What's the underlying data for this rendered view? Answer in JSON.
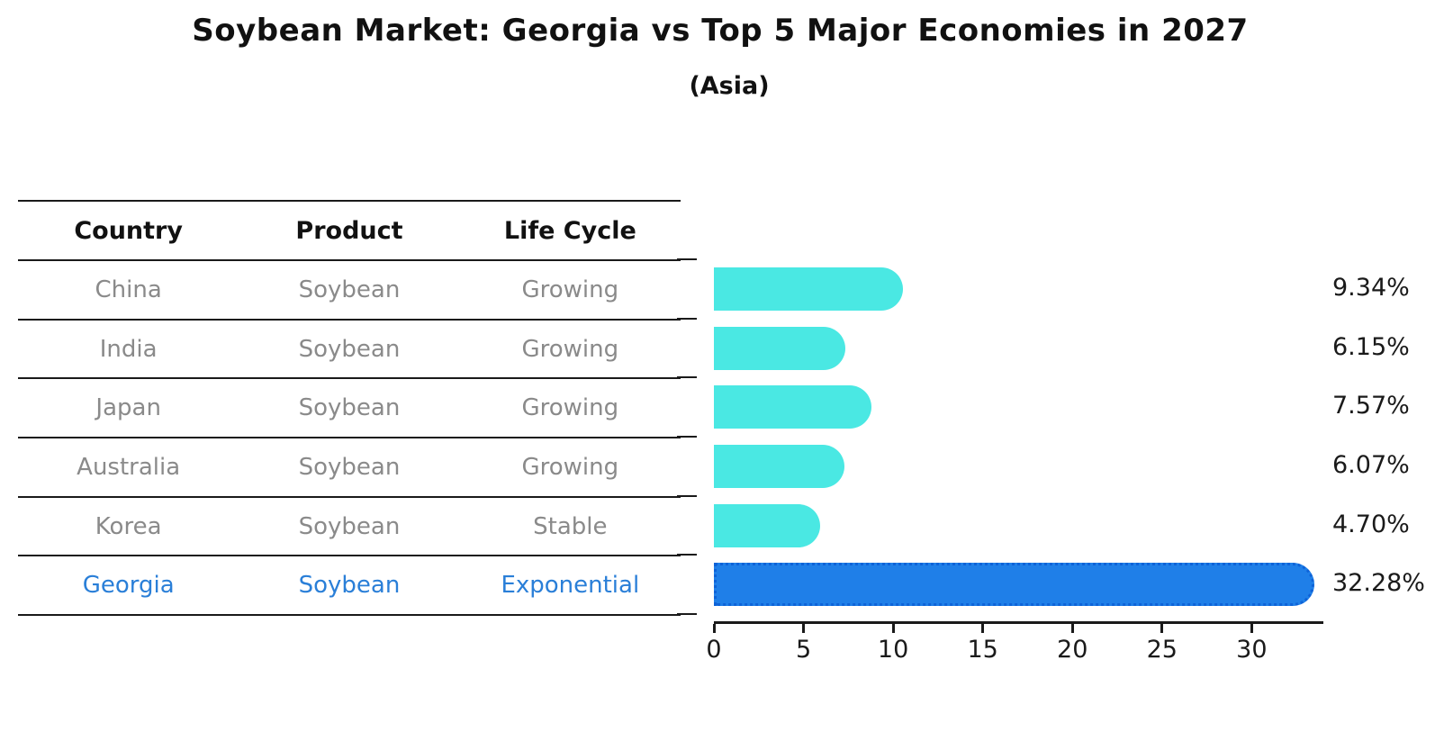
{
  "title": "Soybean Market: Georgia vs Top 5 Major Economies in 2027",
  "subtitle": "(Asia)",
  "table": {
    "columns": [
      "Country",
      "Product",
      "Life Cycle"
    ],
    "rows": [
      {
        "country": "China",
        "product": "Soybean",
        "life_cycle": "Growing",
        "highlighted": false
      },
      {
        "country": "India",
        "product": "Soybean",
        "life_cycle": "Growing",
        "highlighted": false
      },
      {
        "country": "Japan",
        "product": "Soybean",
        "life_cycle": "Growing",
        "highlighted": false
      },
      {
        "country": "Australia",
        "product": "Soybean",
        "life_cycle": "Growing",
        "highlighted": false
      },
      {
        "country": "Korea",
        "product": "Soybean",
        "life_cycle": "Stable",
        "highlighted": false
      },
      {
        "country": "Georgia",
        "product": "Soybean",
        "life_cycle": "Exponential",
        "highlighted": true
      }
    ]
  },
  "chart_data": {
    "type": "bar",
    "orientation": "horizontal",
    "title": "Soybean Market: Georgia vs Top 5 Major Economies in 2027",
    "subtitle": "(Asia)",
    "categories": [
      "China",
      "India",
      "Japan",
      "Australia",
      "Korea",
      "Georgia"
    ],
    "values": [
      9.34,
      6.15,
      7.57,
      6.07,
      4.7,
      32.28
    ],
    "value_labels": [
      "9.34%",
      "6.15%",
      "7.57%",
      "6.07%",
      "4.70%",
      "32.28%"
    ],
    "x_ticks": [
      0,
      5,
      10,
      15,
      20,
      25,
      30
    ],
    "xlim": [
      0,
      34
    ],
    "xlabel": "",
    "ylabel": "",
    "grid": false,
    "legend": false,
    "highlight_index": 5,
    "highlight_style": "dotted-border"
  },
  "colors": {
    "bar": "#4AE8E3",
    "highlight_bar": "#1F7FE8",
    "highlight_border": "#0E63D8",
    "highlight_text": "#2A7FD8",
    "row_text": "#8A8A8A",
    "header_text": "#111111",
    "axis": "#1A1A1A"
  }
}
